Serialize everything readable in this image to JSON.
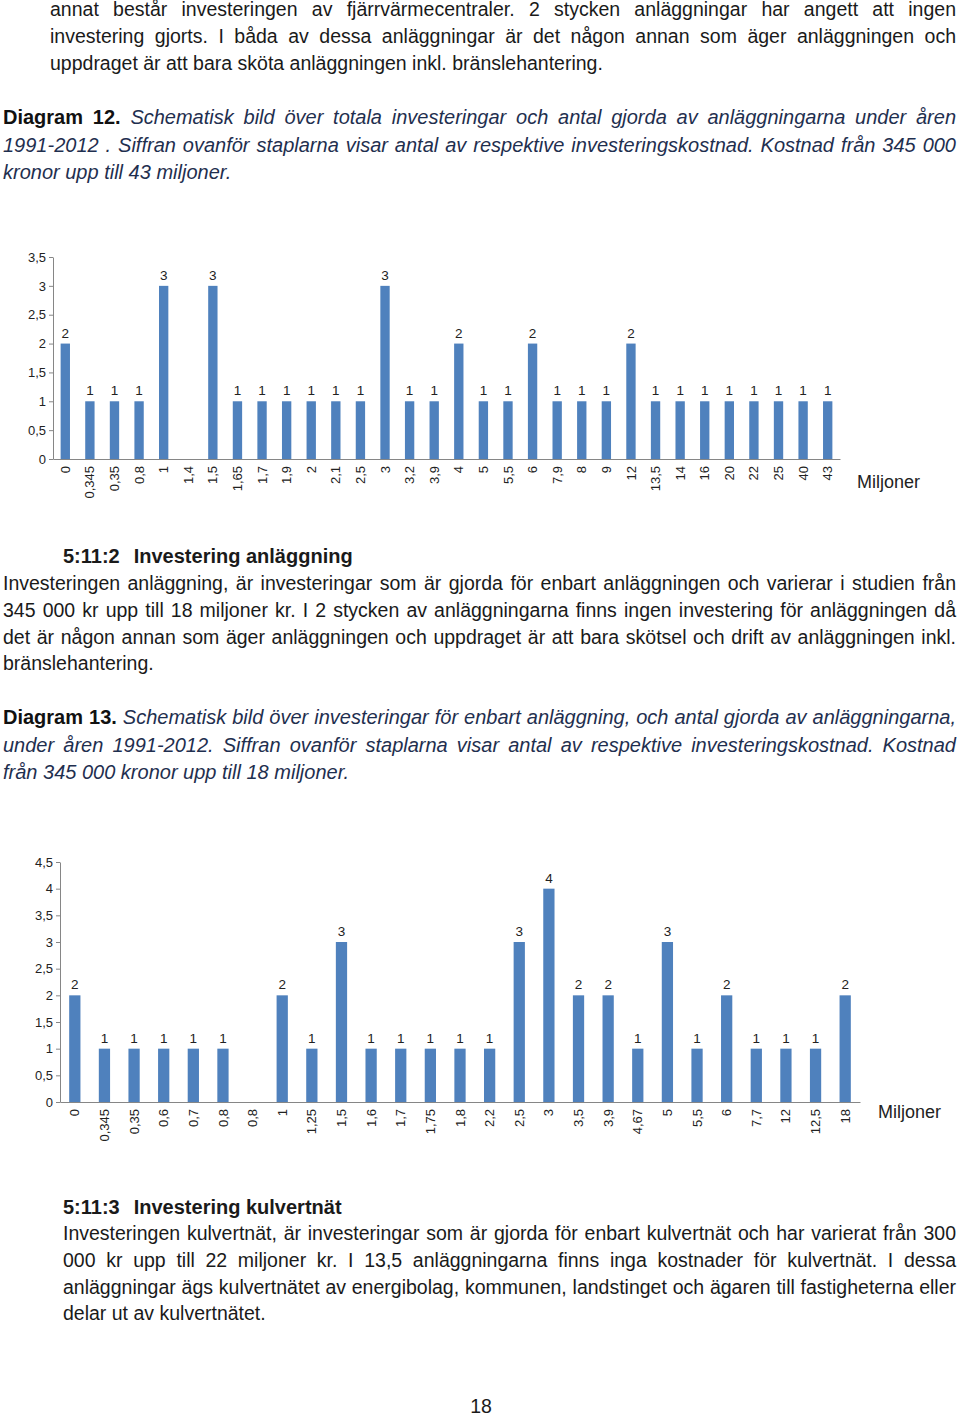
{
  "document": {
    "intro": "annat består investeringen av fjärrvärmecentraler. 2 stycken anläggningar har angett att ingen investering gjorts. I båda av dessa anläggningar är det någon annan som äger anläggningen och uppdraget är att bara sköta anläggningen inkl. bränslehantering.",
    "diagram_12": {
      "label": "Diagram 12.",
      "text": "Schematisk bild över totala investeringar och antal gjorda av anläggningarna under åren 1991-2012 . Siffran ovanför staplarna visar antal av respektive investeringskostnad. Kostnad från 345 000 kronor upp till 43 miljoner."
    },
    "section_2": {
      "number": "5:11:2",
      "title": "Investering anläggning",
      "text": "Investeringen anläggning, är investeringar som är gjorda för enbart anläggningen och varierar i studien från 345 000 kr upp till 18 miljoner kr. I 2 stycken av anläggningarna finns ingen investering för anläggningen då det är någon annan som äger anläggningen och uppdraget är att bara skötsel och drift av anläggningen inkl. bränslehantering."
    },
    "diagram_13": {
      "label": "Diagram 13.",
      "text": "Schematisk bild över investeringar för enbart anläggning, och antal gjorda av anläggningarna, under åren 1991-2012. Siffran ovanför staplarna visar antal av respektive investeringskostnad. Kostnad från 345 000 kronor upp till 18 miljoner."
    },
    "section_3": {
      "number": "5:11:3",
      "title": "Investering kulvertnät",
      "text": "Investeringen kulvertnät, är investeringar som är gjorda för enbart kulvertnät och har varierat från 300 000 kr upp till 22 miljoner kr. I 13,5  anläggningarna finns inga kostnader för kulvertnät.  I dessa anläggningar ägs kulvertnätet av energibolag, kommunen, landstinget och ägaren till fastigheterna eller delar ut av kulvertnätet."
    },
    "page_number": "18"
  },
  "chart_data": [
    {
      "type": "bar",
      "categories": [
        "0",
        "0,345",
        "0,35",
        "0,8",
        "1",
        "1,4",
        "1,5",
        "1,65",
        "1,7",
        "1,9",
        "2",
        "2,1",
        "2,5",
        "3",
        "3,2",
        "3,9",
        "4",
        "5",
        "5,5",
        "6",
        "7,9",
        "8",
        "9",
        "12",
        "13,5",
        "14",
        "16",
        "20",
        "22",
        "25",
        "40",
        "43"
      ],
      "values": [
        2,
        1,
        1,
        1,
        3,
        null,
        3,
        1,
        1,
        1,
        1,
        1,
        1,
        3,
        1,
        1,
        2,
        1,
        1,
        2,
        1,
        1,
        1,
        2,
        1,
        1,
        1,
        1,
        1,
        1,
        1,
        1
      ],
      "color": "#4f81bd",
      "x_label": "Miljoner",
      "ylim": [
        0,
        3.5
      ],
      "yticks": [
        0,
        {
          "value": 0.5,
          "label": "0,5"
        },
        1,
        {
          "value": 1.5,
          "label": "1,5"
        },
        2,
        {
          "value": 2.5,
          "label": "2,5"
        },
        3,
        {
          "value": 3.5,
          "label": "3,5"
        }
      ],
      "data_labels": true,
      "grid": false
    },
    {
      "type": "bar",
      "categories": [
        "0",
        "0,345",
        "0,35",
        "0,6",
        "0,7",
        "0,8",
        "0,8",
        "1",
        "1,25",
        "1,5",
        "1,6",
        "1,7",
        "1,75",
        "1,8",
        "2,2",
        "2,5",
        "3",
        "3,5",
        "3,9",
        "4,67",
        "5",
        "5,5",
        "6",
        "7,7",
        "12",
        "12,5",
        "18"
      ],
      "values": [
        2,
        1,
        1,
        1,
        1,
        1,
        null,
        2,
        1,
        3,
        1,
        1,
        1,
        1,
        1,
        3,
        4,
        2,
        2,
        1,
        3,
        1,
        2,
        1,
        1,
        1,
        2
      ],
      "color": "#4f81bd",
      "x_label": "Miljoner",
      "ylim": [
        0,
        4.5
      ],
      "yticks": [
        0,
        {
          "value": 0.5,
          "label": "0,5"
        },
        1,
        {
          "value": 1.5,
          "label": "1,5"
        },
        2,
        {
          "value": 2.5,
          "label": "2,5"
        },
        3,
        {
          "value": 3.5,
          "label": "3,5"
        },
        4,
        {
          "value": 4.5,
          "label": "4,5"
        }
      ],
      "data_labels": true,
      "grid": false
    }
  ]
}
